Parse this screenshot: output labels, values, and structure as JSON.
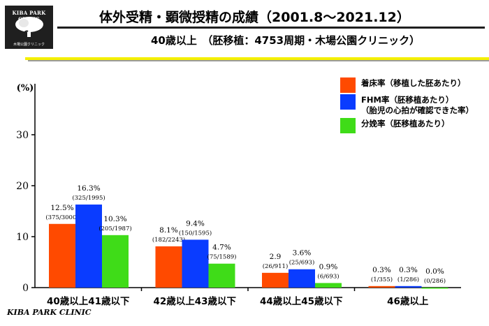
{
  "logo": {
    "title": "KIBA PARK CLINIC",
    "subtitle": "木場公園クリニック"
  },
  "header": {
    "title": "体外受精・顕微授精の成績（2001.8～2021.12）",
    "subtitle": "40歳以上　（胚移植：4753周期・木場公園クリニック）"
  },
  "footer": {
    "text": "KIBA PARK CLINIC"
  },
  "colors": {
    "implantation": "#ff4a00",
    "fhm": "#0a3cff",
    "delivery": "#3fdc18",
    "accent_yellow": "#f4ef00"
  },
  "legend": [
    {
      "lines": [
        "着床率（移植した胚あたり）"
      ]
    },
    {
      "lines": [
        "FHM率（胚移植あたり）",
        "（胎児の心拍が確認できた率）"
      ]
    },
    {
      "lines": [
        "分娩率（胚移植あたり）"
      ]
    }
  ],
  "chart_data": {
    "type": "bar",
    "ylabel": "(%)",
    "ylim": [
      0,
      40
    ],
    "yticks": [
      0,
      10,
      20,
      30
    ],
    "categories": [
      "40歳以上41歳以下",
      "42歳以上43歳以下",
      "44歳以上45歳以下",
      "46歳以上"
    ],
    "series": [
      {
        "name": "着床率（移植した胚あたり）",
        "color": "#ff4a00",
        "values": [
          12.5,
          8.1,
          2.9,
          0.3
        ],
        "labels": [
          "12.5%",
          "8.1%",
          "2.9",
          "0.3%"
        ],
        "counts": [
          "(375/3000)",
          "(182/2243)",
          "(26/911)",
          "(1/355)"
        ]
      },
      {
        "name": "FHM率（胚移植あたり）",
        "color": "#0a3cff",
        "values": [
          16.3,
          9.4,
          3.6,
          0.3
        ],
        "labels": [
          "16.3%",
          "9.4%",
          "3.6%",
          "0.3%"
        ],
        "counts": [
          "(325/1995)",
          "(150/1595)",
          "(25/693)",
          "(1/286)"
        ]
      },
      {
        "name": "分娩率（胚移植あたり）",
        "color": "#3fdc18",
        "values": [
          10.3,
          4.7,
          0.9,
          0.0
        ],
        "labels": [
          "10.3%",
          "4.7%",
          "0.9%",
          "0.0%"
        ],
        "counts": [
          "(205/1987)",
          "(75/1589)",
          "(6/693)",
          "(0/286)"
        ]
      }
    ]
  }
}
